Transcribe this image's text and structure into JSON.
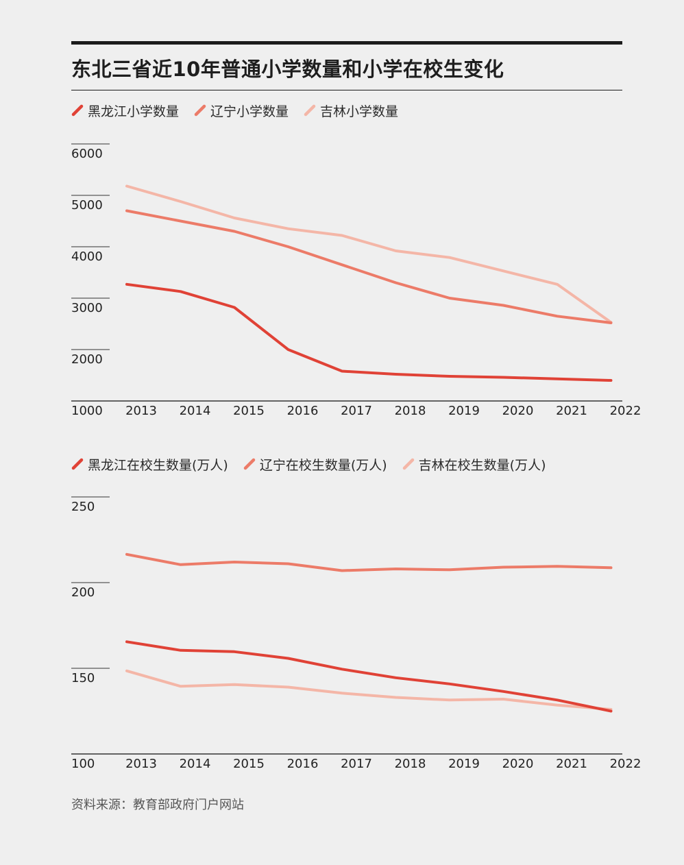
{
  "title": "东北三省近10年普通小学数量和小学在校生变化",
  "source": "资料来源：教育部政府门户网站",
  "colors": {
    "heilongjiang": "#e04236",
    "liaoning": "#ec7b68",
    "jilin": "#f4b6a7",
    "axis": "#333333",
    "background": "#efefef"
  },
  "chart_data": [
    {
      "type": "line",
      "legend": [
        "黑龙江小学数量",
        "辽宁小学数量",
        "吉林小学数量"
      ],
      "x": [
        "2013",
        "2014",
        "2015",
        "2016",
        "2017",
        "2018",
        "2019",
        "2020",
        "2021",
        "2022"
      ],
      "y_ticks": [
        "1000",
        "2000",
        "3000",
        "4000",
        "5000",
        "6000"
      ],
      "ylim": [
        1000,
        6000
      ],
      "series": [
        {
          "name": "黑龙江小学数量",
          "key": "heilongjiang",
          "values": [
            3270,
            3130,
            2820,
            2000,
            1580,
            1520,
            1480,
            1460,
            1430,
            1400
          ]
        },
        {
          "name": "辽宁小学数量",
          "key": "liaoning",
          "values": [
            4700,
            4500,
            4300,
            4000,
            3650,
            3300,
            3000,
            2860,
            2650,
            2520
          ]
        },
        {
          "name": "吉林小学数量",
          "key": "jilin",
          "values": [
            5180,
            4880,
            4560,
            4350,
            4220,
            3920,
            3790,
            3530,
            3270,
            2530
          ]
        }
      ]
    },
    {
      "type": "line",
      "legend": [
        "黑龙江在校生数量(万人)",
        "辽宁在校生数量(万人)",
        "吉林在校生数量(万人)"
      ],
      "x": [
        "2013",
        "2014",
        "2015",
        "2016",
        "2017",
        "2018",
        "2019",
        "2020",
        "2021",
        "2022"
      ],
      "y_ticks": [
        "100",
        "150",
        "200",
        "250"
      ],
      "ylim": [
        100,
        250
      ],
      "series": [
        {
          "name": "黑龙江在校生数量(万人)",
          "key": "heilongjiang",
          "values": [
            165.5,
            160.5,
            159.7,
            155.8,
            149.5,
            144.5,
            140.9,
            136.5,
            131.5,
            125.0
          ]
        },
        {
          "name": "辽宁在校生数量(万人)",
          "key": "liaoning",
          "values": [
            216.5,
            210.5,
            212.0,
            211.0,
            207.0,
            208.0,
            207.5,
            209.0,
            209.5,
            208.7
          ]
        },
        {
          "name": "吉林在校生数量(万人)",
          "key": "jilin",
          "values": [
            148.5,
            139.5,
            140.5,
            139.0,
            135.5,
            133.0,
            131.5,
            132.0,
            128.5,
            126.0
          ]
        }
      ]
    }
  ]
}
